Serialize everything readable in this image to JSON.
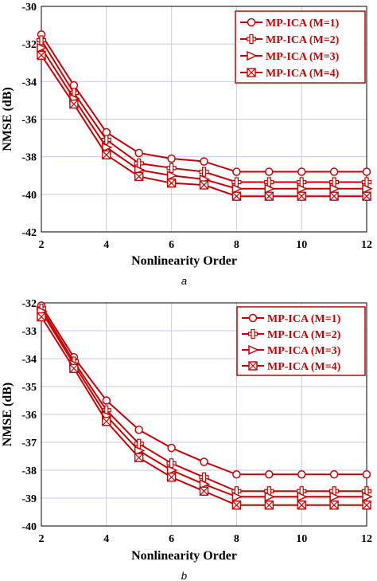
{
  "chart_data": [
    {
      "type": "line",
      "caption": "a",
      "xlabel": "Nonlinearity Order",
      "ylabel": "NMSE (dB)",
      "xlim": [
        2,
        12
      ],
      "ylim": [
        -42,
        -30
      ],
      "xticks": [
        2,
        4,
        6,
        8,
        10,
        12
      ],
      "yticks": [
        -42,
        -40,
        -38,
        -36,
        -34,
        -32,
        -30
      ],
      "grid": true,
      "legend_position": "top-right",
      "line_color": "#cc0000",
      "x": [
        2,
        3,
        4,
        5,
        6,
        7,
        8,
        9,
        10,
        11,
        12
      ],
      "series": [
        {
          "name": "MP-ICA (M=1)",
          "marker": "circle",
          "values": [
            -31.5,
            -34.2,
            -36.7,
            -37.8,
            -38.1,
            -38.25,
            -38.8,
            -38.8,
            -38.8,
            -38.8,
            -38.8
          ]
        },
        {
          "name": "MP-ICA (M=2)",
          "marker": "plus",
          "values": [
            -31.8,
            -34.6,
            -37.1,
            -38.35,
            -38.6,
            -38.8,
            -39.35,
            -39.35,
            -39.35,
            -39.35,
            -39.35
          ]
        },
        {
          "name": "MP-ICA (M=3)",
          "marker": "triangle",
          "values": [
            -32.2,
            -34.9,
            -37.5,
            -38.7,
            -39.0,
            -39.2,
            -39.7,
            -39.7,
            -39.7,
            -39.7,
            -39.7
          ]
        },
        {
          "name": "MP-ICA (M=4)",
          "marker": "boxx",
          "values": [
            -32.6,
            -35.2,
            -37.9,
            -39.05,
            -39.4,
            -39.5,
            -40.1,
            -40.1,
            -40.1,
            -40.1,
            -40.1
          ]
        }
      ]
    },
    {
      "type": "line",
      "caption": "b",
      "xlabel": "Nonlinearity Order",
      "ylabel": "NMSE (dB)",
      "xlim": [
        2,
        12
      ],
      "ylim": [
        -40,
        -32
      ],
      "xticks": [
        2,
        4,
        6,
        8,
        10,
        12
      ],
      "yticks": [
        -40,
        -39,
        -38,
        -37,
        -36,
        -35,
        -34,
        -33,
        -32
      ],
      "grid": true,
      "legend_position": "top-right",
      "line_color": "#cc0000",
      "x": [
        2,
        3,
        4,
        5,
        6,
        7,
        8,
        9,
        10,
        11,
        12
      ],
      "series": [
        {
          "name": "MP-ICA (M=1)",
          "marker": "circle",
          "values": [
            -32.1,
            -33.95,
            -35.5,
            -36.55,
            -37.2,
            -37.7,
            -38.15,
            -38.15,
            -38.15,
            -38.15,
            -38.15
          ]
        },
        {
          "name": "MP-ICA (M=2)",
          "marker": "plus",
          "values": [
            -32.2,
            -34.1,
            -35.85,
            -37.05,
            -37.75,
            -38.25,
            -38.75,
            -38.75,
            -38.75,
            -38.75,
            -38.75
          ]
        },
        {
          "name": "MP-ICA (M=3)",
          "marker": "triangle",
          "values": [
            -32.3,
            -34.2,
            -36.05,
            -37.3,
            -38.0,
            -38.5,
            -38.95,
            -38.95,
            -38.95,
            -38.95,
            -38.95
          ]
        },
        {
          "name": "MP-ICA (M=4)",
          "marker": "boxx",
          "values": [
            -32.5,
            -34.35,
            -36.25,
            -37.55,
            -38.25,
            -38.75,
            -39.25,
            -39.25,
            -39.25,
            -39.25,
            -39.25
          ]
        }
      ]
    }
  ]
}
